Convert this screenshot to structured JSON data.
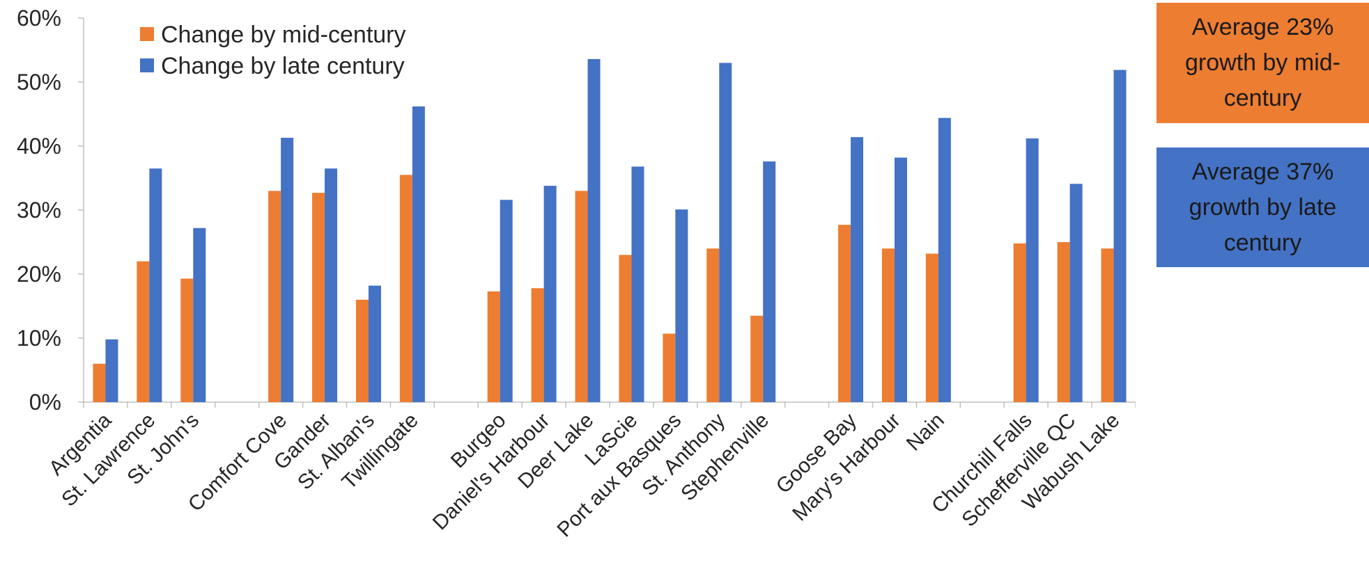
{
  "chart_data": {
    "type": "bar",
    "title": "",
    "xlabel": "",
    "ylabel": "",
    "ylim": [
      0,
      60
    ],
    "yticks": [
      "0%",
      "10%",
      "20%",
      "30%",
      "40%",
      "50%",
      "60%"
    ],
    "grid": false,
    "legend_position": "top-left",
    "categories": [
      "Argentia",
      "St. Lawrence",
      "St. John's",
      "",
      "Comfort Cove",
      "Gander",
      "St. Alban's",
      "Twillingate",
      "",
      "Burgeo",
      "Daniel's Harbour",
      "Deer Lake",
      "LaScie",
      "Port aux Basques",
      "St. Anthony",
      "Stephenville",
      "",
      "Goose Bay",
      "Mary's Harbour",
      "Nain",
      "",
      "Churchill Falls",
      "Schefferville QC",
      "Wabush Lake"
    ],
    "series": [
      {
        "name": "Change by mid-century",
        "color": "#ED7D31",
        "values": [
          6,
          22,
          19.3,
          null,
          33,
          32.7,
          16,
          35.5,
          null,
          17.3,
          17.8,
          33,
          23,
          10.7,
          24,
          13.5,
          null,
          27.7,
          24,
          23.2,
          null,
          24.8,
          25,
          24
        ]
      },
      {
        "name": "Change by late century",
        "color": "#4472C4",
        "values": [
          9.8,
          36.5,
          27.2,
          null,
          41.3,
          36.5,
          18.2,
          46.2,
          null,
          31.6,
          33.8,
          53.6,
          36.8,
          30.1,
          53,
          37.6,
          null,
          41.4,
          38.2,
          44.4,
          null,
          41.2,
          34.1,
          51.9
        ]
      }
    ]
  },
  "callouts": [
    {
      "text": "Average 23% growth by mid-century",
      "color": "#ED7D31"
    },
    {
      "text": "Average 37% growth by late century",
      "color": "#4472C4"
    }
  ]
}
